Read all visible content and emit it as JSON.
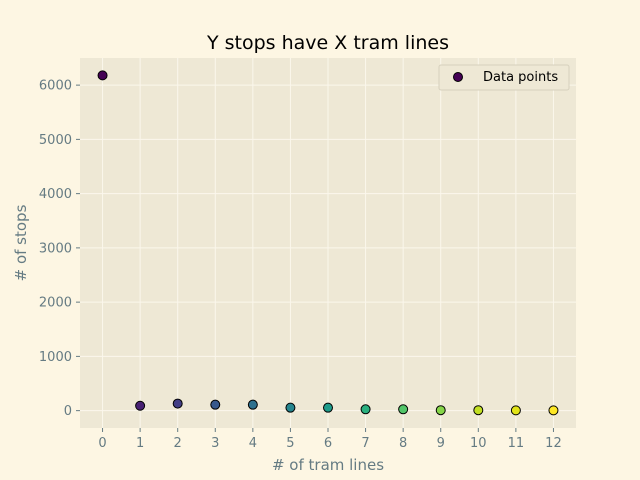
{
  "chart_data": {
    "type": "scatter",
    "title": "Y stops have X tram lines",
    "xlabel": "# of tram lines",
    "ylabel": "# of stops",
    "xlim": [
      -0.6,
      12.6
    ],
    "ylim": [
      -320,
      6500
    ],
    "xticks": [
      "0",
      "1",
      "2",
      "3",
      "4",
      "5",
      "6",
      "7",
      "8",
      "9",
      "10",
      "11",
      "12"
    ],
    "yticks": [
      "0",
      "1000",
      "2000",
      "3000",
      "4000",
      "5000",
      "6000"
    ],
    "grid": true,
    "legend": {
      "placement": "top-right",
      "entries": [
        "Data points"
      ]
    },
    "series": [
      {
        "name": "Data points",
        "x": [
          0,
          1,
          2,
          3,
          4,
          5,
          6,
          7,
          8,
          9,
          10,
          11,
          12
        ],
        "y": [
          6180,
          90,
          130,
          110,
          110,
          55,
          55,
          25,
          25,
          8,
          8,
          5,
          5
        ]
      }
    ],
    "colormap": [
      "#440154",
      "#482173",
      "#433e85",
      "#38598c",
      "#2d708e",
      "#25858e",
      "#1e9b8a",
      "#2ab07f",
      "#52c569",
      "#86d549",
      "#c2df23",
      "#e2e418",
      "#fde725"
    ],
    "colors": {
      "figure_bg": "#fdf6e3",
      "axes_bg": "#eee8d5",
      "grid": "#fbf7ec",
      "text": "#657b83",
      "title": "#000000",
      "marker_edge": "#000000"
    }
  }
}
